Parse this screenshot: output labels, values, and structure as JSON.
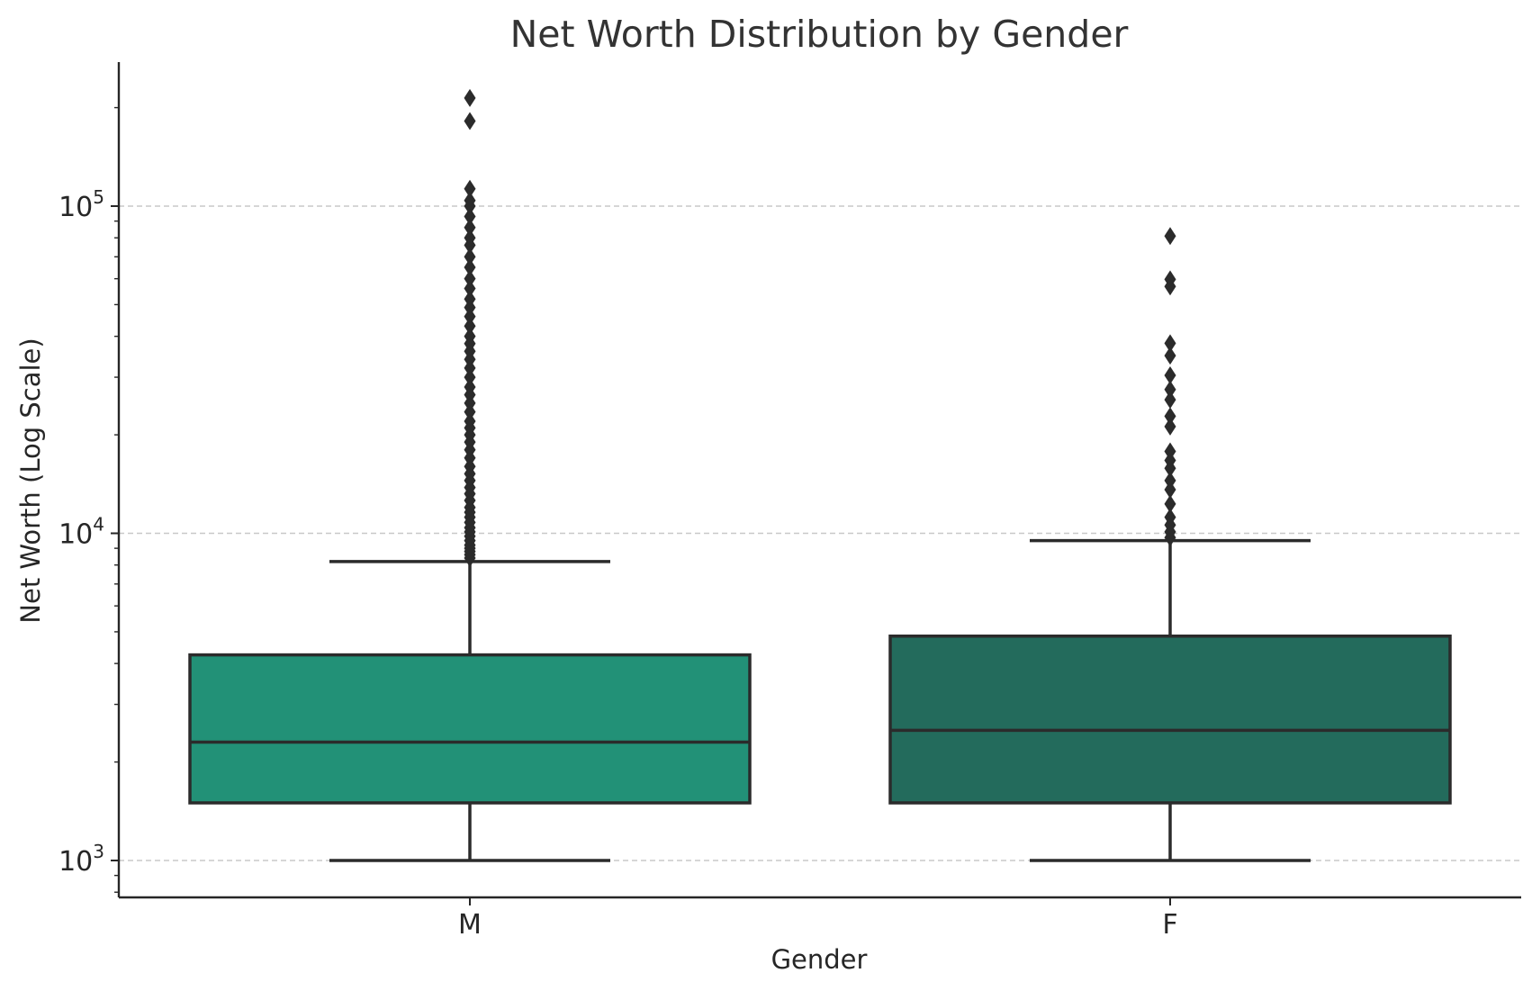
{
  "chart_data": {
    "type": "boxplot",
    "title": "Net Worth Distribution by Gender",
    "xlabel": "Gender",
    "ylabel": "Net Worth (Log Scale)",
    "yscale": "log",
    "ylim": [
      790,
      240000
    ],
    "yticks": [
      {
        "value": 1000,
        "base": "10",
        "exp": "3"
      },
      {
        "value": 10000,
        "base": "10",
        "exp": "4"
      },
      {
        "value": 100000,
        "base": "10",
        "exp": "5"
      }
    ],
    "grid": "y-major-dashed",
    "categories": [
      "M",
      "F"
    ],
    "boxes": [
      {
        "name": "M",
        "color": "#229177",
        "whisker_low": 1000,
        "q1": 1500,
        "median": 2300,
        "q3": 4250,
        "whisker_high": 8200,
        "outliers": [
          8400,
          8600,
          8800,
          9000,
          9200,
          9500,
          9800,
          10100,
          10400,
          10800,
          11200,
          11600,
          12000,
          12600,
          13200,
          13800,
          14500,
          15200,
          16000,
          17000,
          18000,
          19000,
          20000,
          21000,
          22000,
          23500,
          25000,
          26500,
          28000,
          30000,
          32000,
          34000,
          36000,
          38000,
          40000,
          43000,
          46000,
          49000,
          52000,
          56000,
          60000,
          65000,
          70000,
          76000,
          80000,
          86000,
          93000,
          100000,
          104000,
          113000,
          182000,
          214000
        ]
      },
      {
        "name": "F",
        "color": "#236b5c",
        "whisker_low": 1000,
        "q1": 1500,
        "median": 2500,
        "q3": 4850,
        "whisker_high": 9500,
        "outliers": [
          9700,
          10100,
          10600,
          11200,
          12300,
          13600,
          14500,
          15800,
          16700,
          17800,
          21200,
          22800,
          25600,
          27500,
          30400,
          34900,
          38100,
          56800,
          59700,
          81000
        ]
      }
    ],
    "colors": {
      "axis": "#262626",
      "grid": "#c8c8c8",
      "edge": "#2b2b2b",
      "title": "#333333"
    }
  }
}
